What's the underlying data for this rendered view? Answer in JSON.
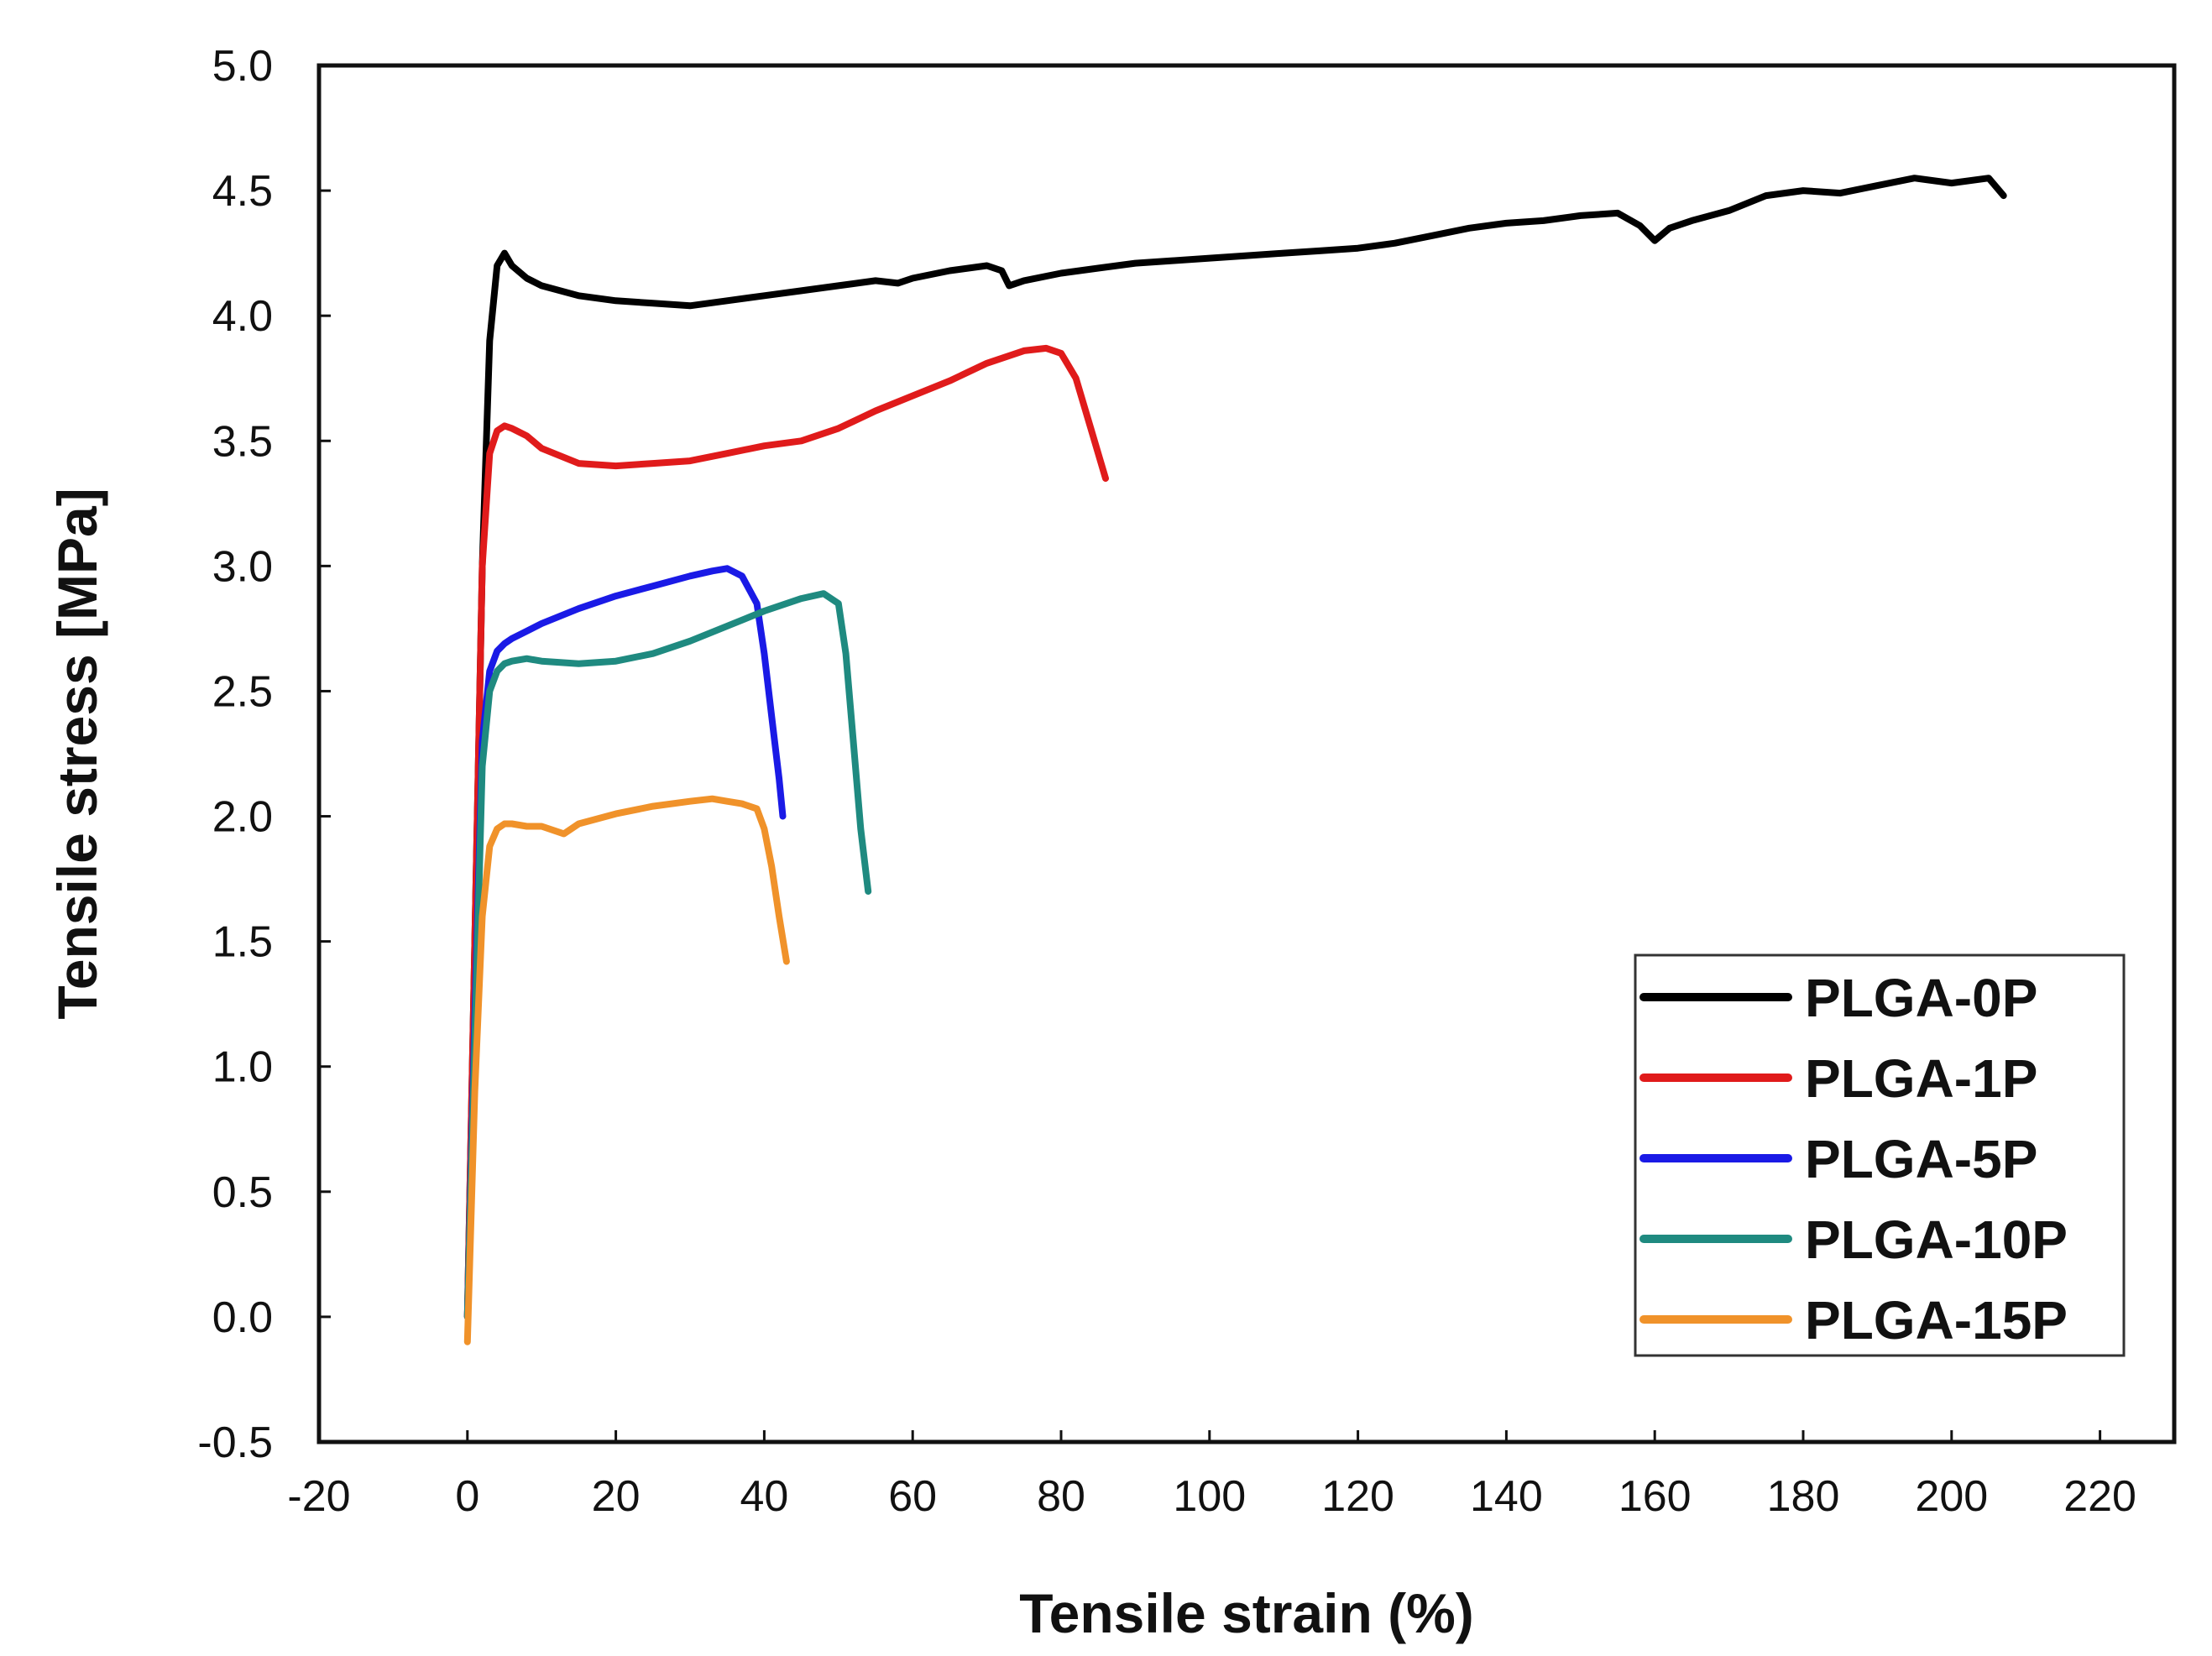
{
  "chart_data": {
    "type": "line",
    "xlabel": "Tensile strain (%)",
    "ylabel": "Tensile stress [MPa]",
    "xlim": [
      -20,
      230
    ],
    "ylim": [
      -0.5,
      5.0
    ],
    "x_ticks": [
      -20,
      0,
      20,
      40,
      60,
      80,
      100,
      120,
      140,
      160,
      180,
      200,
      220
    ],
    "y_ticks": [
      -0.5,
      0.0,
      0.5,
      1.0,
      1.5,
      2.0,
      2.5,
      3.0,
      3.5,
      4.0,
      4.5,
      5.0
    ],
    "x_tick_labels": [
      "-20",
      "0",
      "20",
      "40",
      "60",
      "80",
      "100",
      "120",
      "140",
      "160",
      "180",
      "200",
      "220"
    ],
    "y_tick_labels": [
      "-0.5",
      "0.0",
      "0.5",
      "1.0",
      "1.5",
      "2.0",
      "2.5",
      "3.0",
      "3.5",
      "4.0",
      "4.5",
      "5.0"
    ],
    "grid": false,
    "legend_position": "bottom-right",
    "series": [
      {
        "name": "PLGA-0P",
        "color": "#000000",
        "x": [
          0,
          1,
          2,
          3,
          4,
          5,
          6,
          8,
          10,
          15,
          20,
          25,
          30,
          35,
          40,
          45,
          50,
          55,
          58,
          60,
          65,
          70,
          72,
          73,
          75,
          80,
          85,
          90,
          95,
          100,
          105,
          110,
          115,
          120,
          125,
          130,
          135,
          140,
          145,
          150,
          155,
          158,
          160,
          162,
          165,
          170,
          175,
          180,
          185,
          190,
          195,
          200,
          205,
          207
        ],
        "y": [
          0.0,
          1.5,
          3.0,
          3.9,
          4.2,
          4.25,
          4.2,
          4.15,
          4.12,
          4.08,
          4.06,
          4.05,
          4.04,
          4.06,
          4.08,
          4.1,
          4.12,
          4.14,
          4.13,
          4.15,
          4.18,
          4.2,
          4.18,
          4.12,
          4.14,
          4.17,
          4.19,
          4.21,
          4.22,
          4.23,
          4.24,
          4.25,
          4.26,
          4.27,
          4.29,
          4.32,
          4.35,
          4.37,
          4.38,
          4.4,
          4.41,
          4.36,
          4.3,
          4.35,
          4.38,
          4.42,
          4.48,
          4.5,
          4.49,
          4.52,
          4.55,
          4.53,
          4.55,
          4.48
        ]
      },
      {
        "name": "PLGA-1P",
        "color": "#e01b1b",
        "x": [
          0,
          1,
          2,
          3,
          4,
          5,
          6,
          8,
          10,
          15,
          20,
          25,
          30,
          35,
          40,
          45,
          50,
          55,
          60,
          65,
          70,
          75,
          78,
          80,
          82,
          84,
          86
        ],
        "y": [
          0.0,
          1.5,
          3.0,
          3.45,
          3.54,
          3.56,
          3.55,
          3.52,
          3.47,
          3.41,
          3.4,
          3.41,
          3.42,
          3.45,
          3.48,
          3.5,
          3.55,
          3.62,
          3.68,
          3.74,
          3.81,
          3.86,
          3.87,
          3.85,
          3.75,
          3.55,
          3.35
        ]
      },
      {
        "name": "PLGA-5P",
        "color": "#1a1ae6",
        "x": [
          0,
          1,
          2,
          3,
          4,
          5,
          6,
          8,
          10,
          15,
          20,
          25,
          30,
          33,
          35,
          37,
          39,
          40,
          41,
          42,
          42.5
        ],
        "y": [
          0.0,
          1.2,
          2.3,
          2.58,
          2.66,
          2.69,
          2.71,
          2.74,
          2.77,
          2.83,
          2.88,
          2.92,
          2.96,
          2.98,
          2.99,
          2.96,
          2.85,
          2.65,
          2.4,
          2.15,
          2.0
        ]
      },
      {
        "name": "PLGA-10P",
        "color": "#1f8a80",
        "x": [
          0,
          1,
          2,
          3,
          4,
          5,
          6,
          8,
          10,
          15,
          20,
          25,
          30,
          35,
          40,
          45,
          48,
          50,
          51,
          52,
          53,
          54
        ],
        "y": [
          0.0,
          1.1,
          2.2,
          2.5,
          2.58,
          2.61,
          2.62,
          2.63,
          2.62,
          2.61,
          2.62,
          2.65,
          2.7,
          2.76,
          2.82,
          2.87,
          2.89,
          2.85,
          2.65,
          2.3,
          1.95,
          1.7
        ]
      },
      {
        "name": "PLGA-15P",
        "color": "#f0922a",
        "x": [
          0,
          1,
          2,
          3,
          4,
          5,
          6,
          8,
          10,
          13,
          15,
          20,
          25,
          30,
          33,
          35,
          37,
          39,
          40,
          41,
          42,
          43
        ],
        "y": [
          -0.1,
          0.9,
          1.6,
          1.88,
          1.95,
          1.97,
          1.97,
          1.96,
          1.96,
          1.93,
          1.97,
          2.01,
          2.04,
          2.06,
          2.07,
          2.06,
          2.05,
          2.03,
          1.95,
          1.8,
          1.6,
          1.42
        ]
      }
    ]
  }
}
